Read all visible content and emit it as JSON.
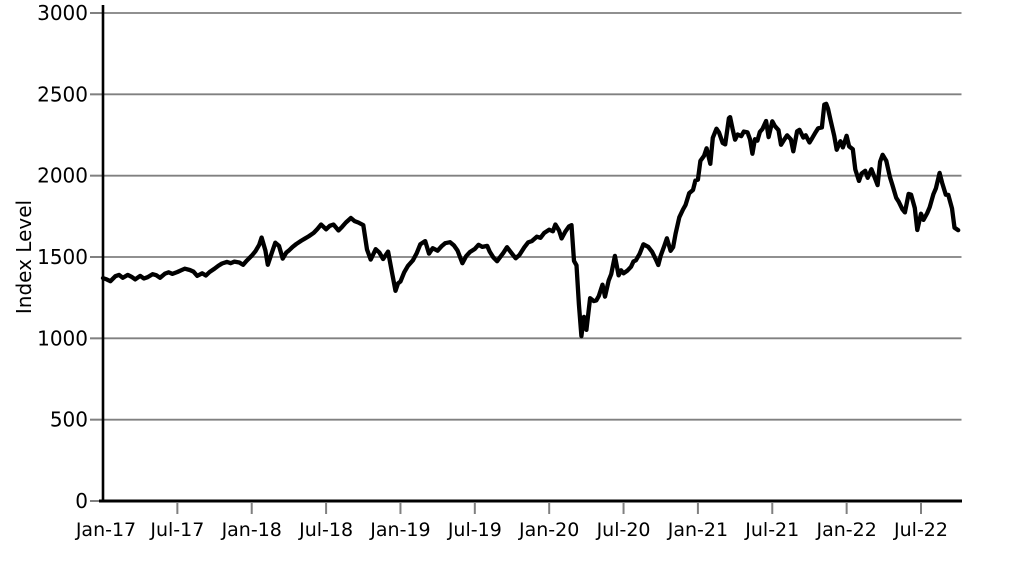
{
  "chart_data": {
    "type": "line",
    "title": "",
    "xlabel": "",
    "ylabel": "Index Level",
    "ylim": [
      0,
      3000
    ],
    "yticks": [
      0,
      500,
      1000,
      1500,
      2000,
      2500,
      3000
    ],
    "ytick_labels": [
      "0",
      "500",
      "1000",
      "1500",
      "2000",
      "2500",
      "3000"
    ],
    "xtick_months": [
      0,
      6,
      12,
      18,
      24,
      30,
      36,
      42,
      48,
      54,
      60,
      66
    ],
    "xtick_labels": [
      "Jan-17",
      "Jul-17",
      "Jan-18",
      "Jul-18",
      "Jan-19",
      "Jul-19",
      "Jan-20",
      "Jul-20",
      "Jan-21",
      "Jul-21",
      "Jan-22",
      "Jul-22"
    ],
    "xlim_months": [
      0,
      69.3
    ],
    "grid": "horizontal",
    "legend": null,
    "line_color": "#000000",
    "grid_color": "#808080",
    "axis_color": "#000000",
    "x_unit": "months since Jan-2017 (fractional = weeks within month)",
    "series": [
      {
        "name": "Index Level",
        "points_months_since_jan2017": [
          [
            0,
            1370
          ],
          [
            0.3,
            1362
          ],
          [
            0.6,
            1351
          ],
          [
            1,
            1382
          ],
          [
            1.3,
            1390
          ],
          [
            1.6,
            1372
          ],
          [
            2,
            1390
          ],
          [
            2.3,
            1378
          ],
          [
            2.6,
            1362
          ],
          [
            3,
            1384
          ],
          [
            3.3,
            1368
          ],
          [
            3.6,
            1376
          ],
          [
            4,
            1394
          ],
          [
            4.3,
            1388
          ],
          [
            4.6,
            1372
          ],
          [
            5,
            1398
          ],
          [
            5.3,
            1406
          ],
          [
            5.6,
            1396
          ],
          [
            6,
            1408
          ],
          [
            6.3,
            1418
          ],
          [
            6.6,
            1428
          ],
          [
            7,
            1420
          ],
          [
            7.3,
            1410
          ],
          [
            7.6,
            1384
          ],
          [
            8,
            1400
          ],
          [
            8.3,
            1386
          ],
          [
            8.6,
            1408
          ],
          [
            9,
            1428
          ],
          [
            9.3,
            1446
          ],
          [
            9.6,
            1460
          ],
          [
            10,
            1470
          ],
          [
            10.3,
            1462
          ],
          [
            10.6,
            1472
          ],
          [
            11,
            1466
          ],
          [
            11.3,
            1452
          ],
          [
            11.6,
            1478
          ],
          [
            12,
            1508
          ],
          [
            12.3,
            1535
          ],
          [
            12.6,
            1575
          ],
          [
            12.8,
            1620
          ],
          [
            13.1,
            1540
          ],
          [
            13.3,
            1452
          ],
          [
            13.6,
            1522
          ],
          [
            13.9,
            1588
          ],
          [
            14.2,
            1568
          ],
          [
            14.5,
            1490
          ],
          [
            14.8,
            1528
          ],
          [
            15,
            1540
          ],
          [
            15.3,
            1562
          ],
          [
            15.6,
            1580
          ],
          [
            16,
            1600
          ],
          [
            16.3,
            1614
          ],
          [
            16.6,
            1627
          ],
          [
            17,
            1648
          ],
          [
            17.3,
            1672
          ],
          [
            17.6,
            1700
          ],
          [
            18,
            1670
          ],
          [
            18.3,
            1692
          ],
          [
            18.6,
            1700
          ],
          [
            19,
            1663
          ],
          [
            19.3,
            1686
          ],
          [
            19.6,
            1712
          ],
          [
            20,
            1740
          ],
          [
            20.3,
            1721
          ],
          [
            20.6,
            1712
          ],
          [
            21,
            1696
          ],
          [
            21.3,
            1546
          ],
          [
            21.6,
            1484
          ],
          [
            22,
            1548
          ],
          [
            22.3,
            1527
          ],
          [
            22.6,
            1488
          ],
          [
            23,
            1533
          ],
          [
            23.3,
            1411
          ],
          [
            23.6,
            1292
          ],
          [
            23.8,
            1338
          ],
          [
            24,
            1350
          ],
          [
            24.3,
            1406
          ],
          [
            24.6,
            1445
          ],
          [
            25,
            1480
          ],
          [
            25.3,
            1522
          ],
          [
            25.6,
            1578
          ],
          [
            26,
            1598
          ],
          [
            26.3,
            1521
          ],
          [
            26.6,
            1554
          ],
          [
            27,
            1539
          ],
          [
            27.3,
            1565
          ],
          [
            27.6,
            1585
          ],
          [
            28,
            1591
          ],
          [
            28.3,
            1572
          ],
          [
            28.6,
            1540
          ],
          [
            29,
            1462
          ],
          [
            29.3,
            1505
          ],
          [
            29.6,
            1530
          ],
          [
            30,
            1550
          ],
          [
            30.3,
            1575
          ],
          [
            30.6,
            1562
          ],
          [
            31,
            1568
          ],
          [
            31.2,
            1533
          ],
          [
            31.5,
            1497
          ],
          [
            31.8,
            1474
          ],
          [
            32,
            1495
          ],
          [
            32.3,
            1525
          ],
          [
            32.6,
            1560
          ],
          [
            33,
            1520
          ],
          [
            33.3,
            1492
          ],
          [
            33.6,
            1512
          ],
          [
            34,
            1560
          ],
          [
            34.3,
            1590
          ],
          [
            34.6,
            1598
          ],
          [
            35,
            1625
          ],
          [
            35.3,
            1618
          ],
          [
            35.6,
            1648
          ],
          [
            36,
            1668
          ],
          [
            36.3,
            1658
          ],
          [
            36.5,
            1700
          ],
          [
            36.8,
            1662
          ],
          [
            37,
            1614
          ],
          [
            37.3,
            1656
          ],
          [
            37.6,
            1688
          ],
          [
            37.8,
            1696
          ],
          [
            38,
            1476
          ],
          [
            38.2,
            1449
          ],
          [
            38.4,
            1210
          ],
          [
            38.6,
            1014
          ],
          [
            38.8,
            1132
          ],
          [
            39,
            1052
          ],
          [
            39.3,
            1247
          ],
          [
            39.6,
            1229
          ],
          [
            39.8,
            1233
          ],
          [
            40,
            1260
          ],
          [
            40.3,
            1330
          ],
          [
            40.5,
            1256
          ],
          [
            40.8,
            1356
          ],
          [
            41,
            1394
          ],
          [
            41.3,
            1507
          ],
          [
            41.6,
            1387
          ],
          [
            41.8,
            1418
          ],
          [
            42,
            1400
          ],
          [
            42.3,
            1416
          ],
          [
            42.6,
            1440
          ],
          [
            42.8,
            1473
          ],
          [
            43,
            1480
          ],
          [
            43.3,
            1520
          ],
          [
            43.6,
            1578
          ],
          [
            44,
            1562
          ],
          [
            44.3,
            1532
          ],
          [
            44.6,
            1485
          ],
          [
            44.8,
            1451
          ],
          [
            45,
            1508
          ],
          [
            45.3,
            1570
          ],
          [
            45.5,
            1615
          ],
          [
            45.8,
            1538
          ],
          [
            46,
            1560
          ],
          [
            46.2,
            1644
          ],
          [
            46.5,
            1744
          ],
          [
            46.8,
            1792
          ],
          [
            47,
            1819
          ],
          [
            47.3,
            1892
          ],
          [
            47.6,
            1912
          ],
          [
            47.8,
            1970
          ],
          [
            48,
            1975
          ],
          [
            48.2,
            2091
          ],
          [
            48.5,
            2123
          ],
          [
            48.7,
            2168
          ],
          [
            49,
            2073
          ],
          [
            49.2,
            2233
          ],
          [
            49.5,
            2289
          ],
          [
            49.7,
            2266
          ],
          [
            50,
            2201
          ],
          [
            50.2,
            2192
          ],
          [
            50.5,
            2353
          ],
          [
            50.6,
            2360
          ],
          [
            50.8,
            2287
          ],
          [
            51,
            2221
          ],
          [
            51.2,
            2253
          ],
          [
            51.5,
            2243
          ],
          [
            51.7,
            2271
          ],
          [
            52,
            2266
          ],
          [
            52.2,
            2224
          ],
          [
            52.4,
            2135
          ],
          [
            52.6,
            2224
          ],
          [
            52.8,
            2215
          ],
          [
            53,
            2269
          ],
          [
            53.2,
            2286
          ],
          [
            53.5,
            2336
          ],
          [
            53.7,
            2237
          ],
          [
            54,
            2334
          ],
          [
            54.2,
            2306
          ],
          [
            54.5,
            2280
          ],
          [
            54.7,
            2190
          ],
          [
            55,
            2226
          ],
          [
            55.2,
            2248
          ],
          [
            55.5,
            2223
          ],
          [
            55.7,
            2150
          ],
          [
            56,
            2273
          ],
          [
            56.2,
            2282
          ],
          [
            56.5,
            2234
          ],
          [
            56.7,
            2248
          ],
          [
            57,
            2204
          ],
          [
            57.2,
            2228
          ],
          [
            57.5,
            2268
          ],
          [
            57.7,
            2291
          ],
          [
            58,
            2297
          ],
          [
            58.2,
            2437
          ],
          [
            58.35,
            2442
          ],
          [
            58.5,
            2412
          ],
          [
            58.7,
            2343
          ],
          [
            59,
            2246
          ],
          [
            59.2,
            2159
          ],
          [
            59.5,
            2212
          ],
          [
            59.7,
            2174
          ],
          [
            60,
            2245
          ],
          [
            60.2,
            2180
          ],
          [
            60.5,
            2163
          ],
          [
            60.7,
            2038
          ],
          [
            61,
            1968
          ],
          [
            61.2,
            2013
          ],
          [
            61.5,
            2030
          ],
          [
            61.7,
            1987
          ],
          [
            62,
            2040
          ],
          [
            62.2,
            2001
          ],
          [
            62.5,
            1942
          ],
          [
            62.7,
            2086
          ],
          [
            62.9,
            2128
          ],
          [
            63.2,
            2091
          ],
          [
            63.5,
            1990
          ],
          [
            63.7,
            1941
          ],
          [
            64,
            1864
          ],
          [
            64.2,
            1840
          ],
          [
            64.5,
            1793
          ],
          [
            64.7,
            1774
          ],
          [
            65,
            1888
          ],
          [
            65.2,
            1883
          ],
          [
            65.5,
            1801
          ],
          [
            65.7,
            1666
          ],
          [
            66,
            1766
          ],
          [
            66.2,
            1728
          ],
          [
            66.5,
            1770
          ],
          [
            66.7,
            1806
          ],
          [
            67,
            1886
          ],
          [
            67.2,
            1922
          ],
          [
            67.5,
            2017
          ],
          [
            67.7,
            1957
          ],
          [
            68,
            1883
          ],
          [
            68.2,
            1882
          ],
          [
            68.5,
            1799
          ],
          [
            68.7,
            1680
          ],
          [
            69,
            1665
          ]
        ]
      }
    ]
  }
}
